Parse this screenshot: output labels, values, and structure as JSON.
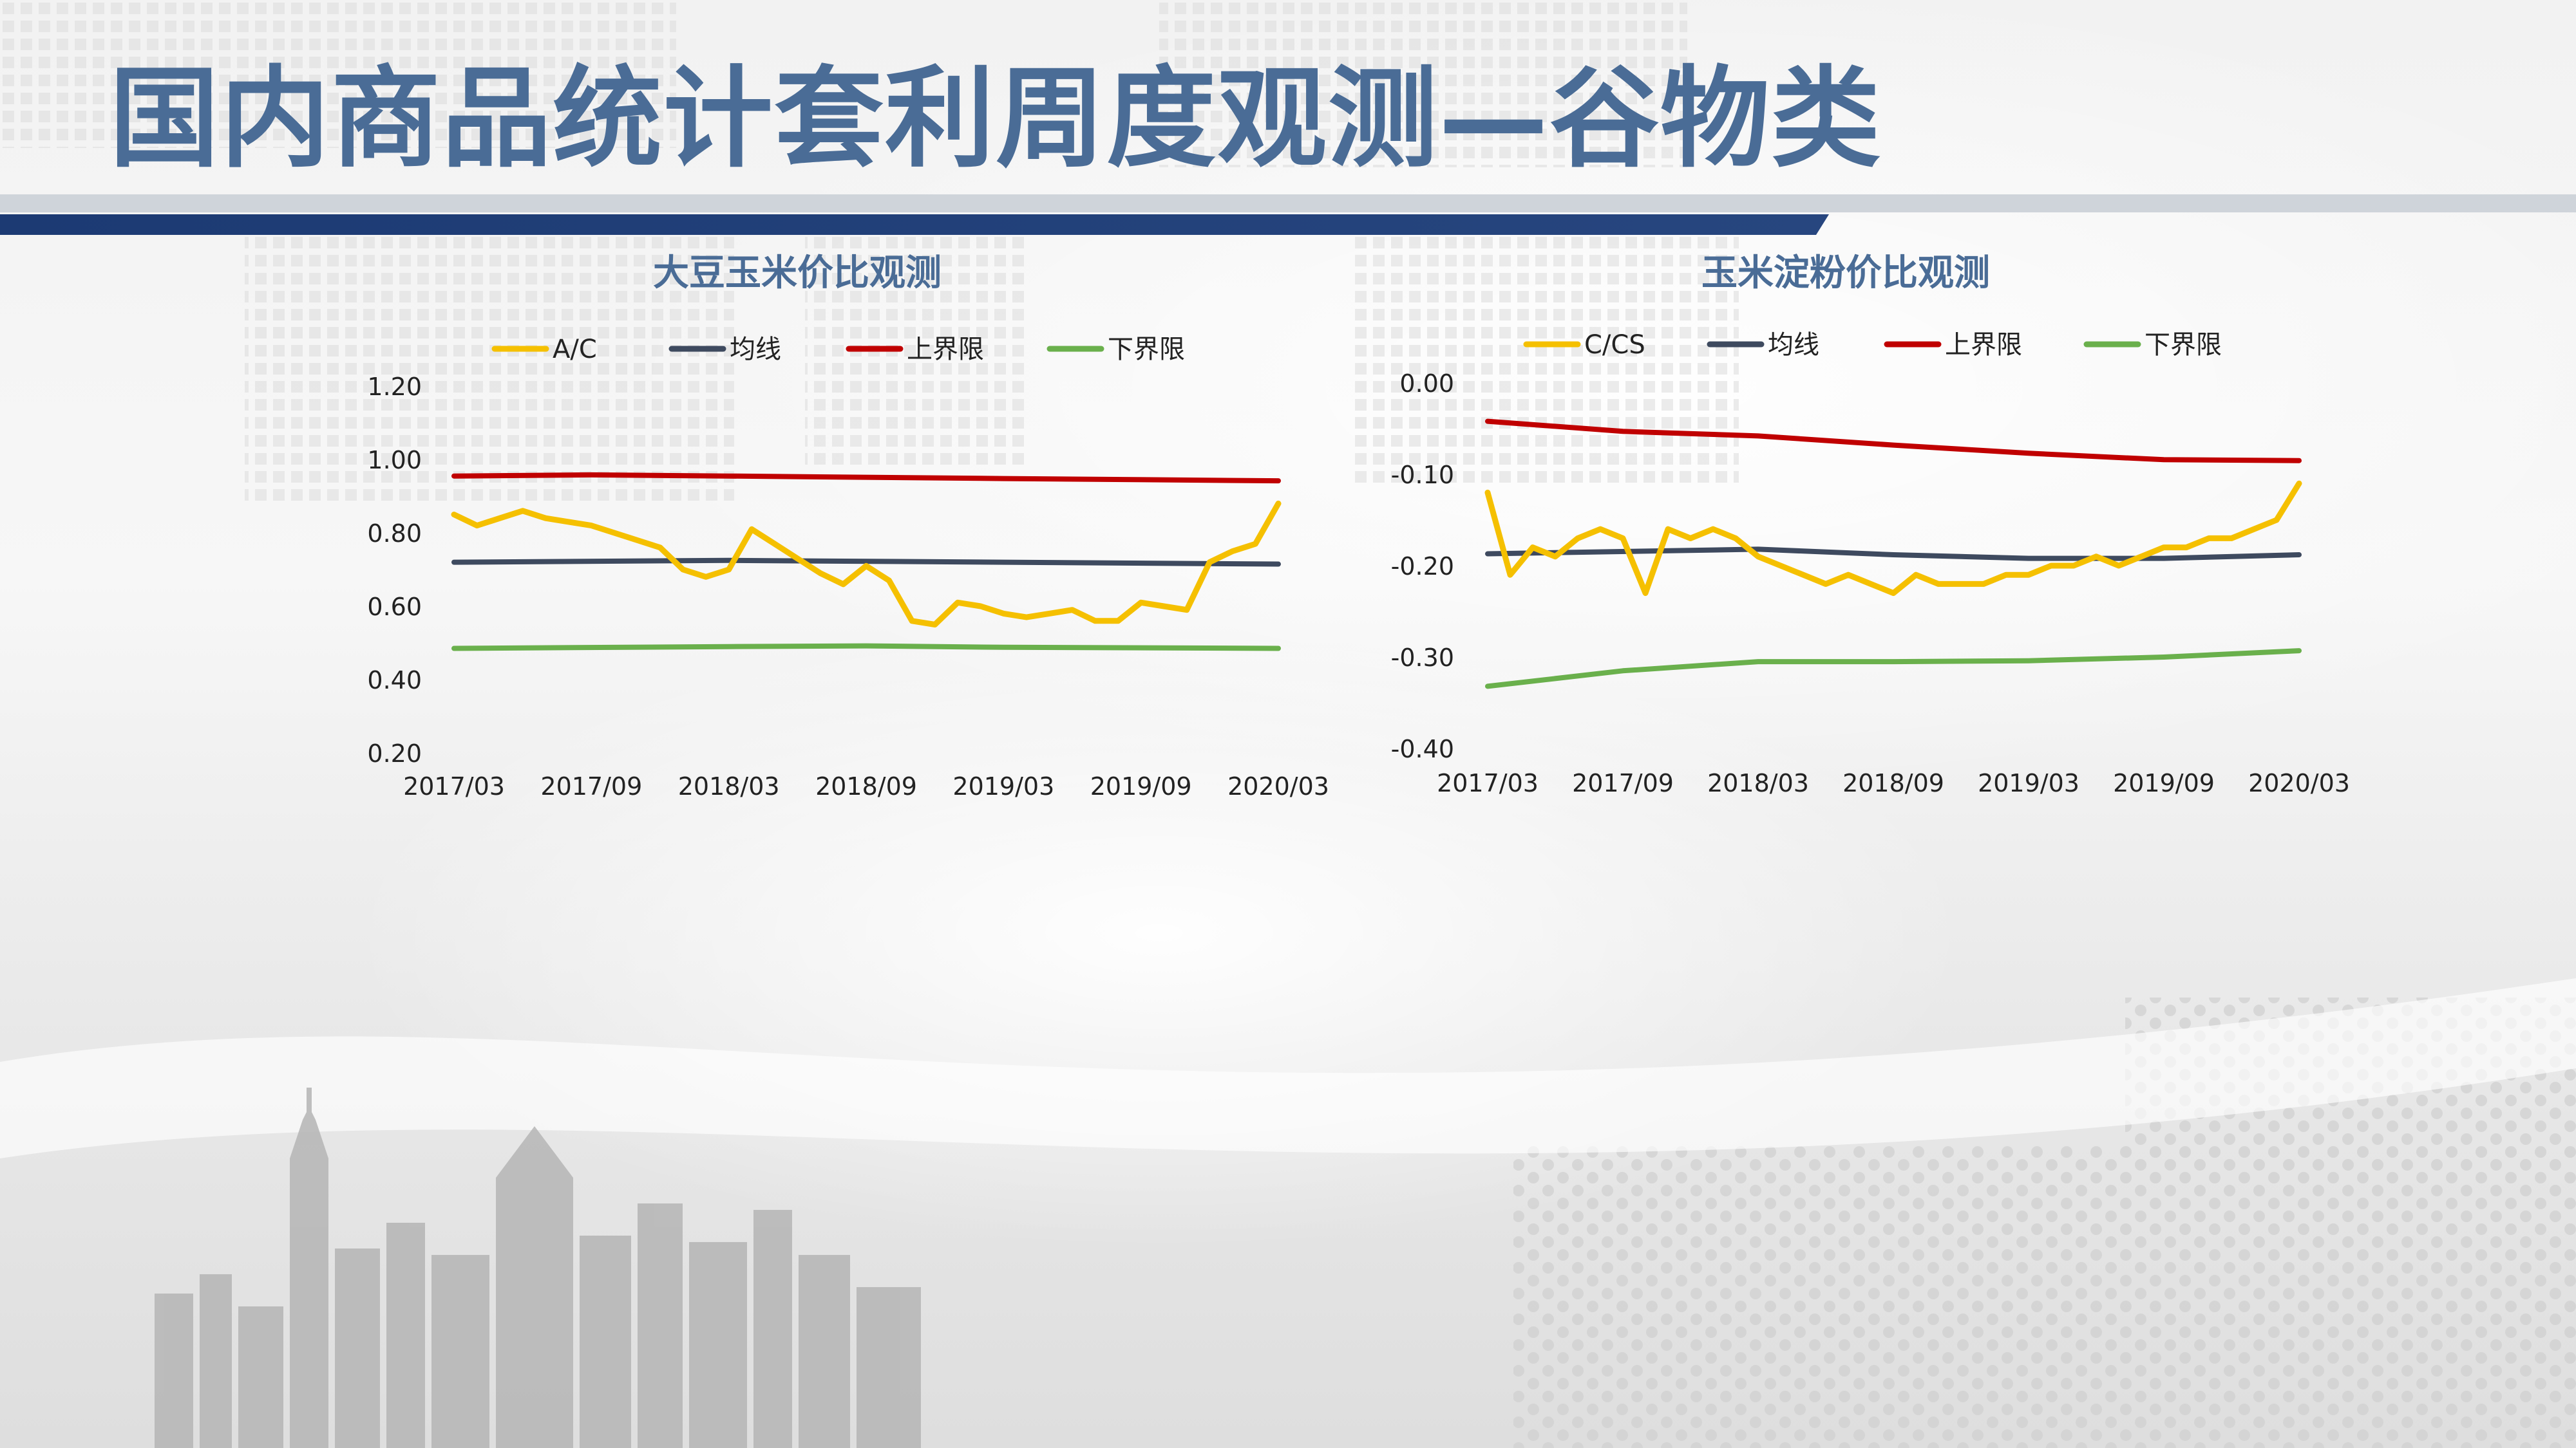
{
  "slide": {
    "title": "国内商品统计套利周度观测—谷物类"
  },
  "colors": {
    "title": "#4a6c96",
    "banner": "#1c3a73",
    "ratio": "#f5c000",
    "mean": "#3e4a5f",
    "upper": "#c00000",
    "lower": "#6ab04c"
  },
  "chart_data": [
    {
      "type": "line",
      "title": "大豆玉米价比观测",
      "xlabel": "",
      "ylabel": "",
      "x_ticks": [
        "2017/03",
        "2017/09",
        "2018/03",
        "2018/09",
        "2019/03",
        "2019/09",
        "2020/03"
      ],
      "y_ticks": [
        "1.20",
        "1.00",
        "0.80",
        "0.60",
        "0.40",
        "0.20"
      ],
      "ylim": [
        0.2,
        1.2
      ],
      "legend_position": "top",
      "grid": false,
      "x_start": "2017/03",
      "x_end": "2020/03",
      "series": [
        {
          "name": "A/C",
          "color": "#f5c000",
          "points": [
            [
              "2017/03",
              0.85
            ],
            [
              "2017/04",
              0.82
            ],
            [
              "2017/05",
              0.84
            ],
            [
              "2017/06",
              0.86
            ],
            [
              "2017/07",
              0.84
            ],
            [
              "2017/08",
              0.83
            ],
            [
              "2017/09",
              0.82
            ],
            [
              "2017/10",
              0.8
            ],
            [
              "2017/11",
              0.78
            ],
            [
              "2017/12",
              0.76
            ],
            [
              "2018/01",
              0.7
            ],
            [
              "2018/02",
              0.68
            ],
            [
              "2018/03",
              0.7
            ],
            [
              "2018/04",
              0.81
            ],
            [
              "2018/05",
              0.77
            ],
            [
              "2018/06",
              0.73
            ],
            [
              "2018/07",
              0.69
            ],
            [
              "2018/08",
              0.66
            ],
            [
              "2018/09",
              0.71
            ],
            [
              "2018/10",
              0.67
            ],
            [
              "2018/11",
              0.56
            ],
            [
              "2018/12",
              0.55
            ],
            [
              "2019/01",
              0.61
            ],
            [
              "2019/02",
              0.6
            ],
            [
              "2019/03",
              0.58
            ],
            [
              "2019/04",
              0.57
            ],
            [
              "2019/05",
              0.58
            ],
            [
              "2019/06",
              0.59
            ],
            [
              "2019/07",
              0.56
            ],
            [
              "2019/08",
              0.56
            ],
            [
              "2019/09",
              0.61
            ],
            [
              "2019/10",
              0.6
            ],
            [
              "2019/11",
              0.59
            ],
            [
              "2019/12",
              0.72
            ],
            [
              "2020/01",
              0.75
            ],
            [
              "2020/02",
              0.77
            ],
            [
              "2020/03",
              0.88
            ]
          ]
        },
        {
          "name": "均线",
          "color": "#3e4a5f",
          "points": [
            [
              "2017/03",
              0.72
            ],
            [
              "2018/03",
              0.725
            ],
            [
              "2019/03",
              0.72
            ],
            [
              "2020/03",
              0.715
            ]
          ]
        },
        {
          "name": "上界限",
          "color": "#c00000",
          "points": [
            [
              "2017/03",
              0.955
            ],
            [
              "2017/09",
              0.958
            ],
            [
              "2018/03",
              0.955
            ],
            [
              "2019/03",
              0.948
            ],
            [
              "2020/03",
              0.942
            ]
          ]
        },
        {
          "name": "下界限",
          "color": "#6ab04c",
          "points": [
            [
              "2017/03",
              0.485
            ],
            [
              "2018/03",
              0.49
            ],
            [
              "2018/09",
              0.492
            ],
            [
              "2019/03",
              0.488
            ],
            [
              "2020/03",
              0.485
            ]
          ]
        }
      ]
    },
    {
      "type": "line",
      "title": "玉米淀粉价比观测",
      "xlabel": "",
      "ylabel": "",
      "x_ticks": [
        "2017/03",
        "2017/09",
        "2018/03",
        "2018/09",
        "2019/03",
        "2019/09",
        "2020/03"
      ],
      "y_ticks": [
        "0.00",
        "-0.10",
        "-0.20",
        "-0.30",
        "-0.40"
      ],
      "ylim": [
        -0.4,
        0.0
      ],
      "legend_position": "top",
      "grid": false,
      "x_start": "2017/03",
      "x_end": "2020/03",
      "series": [
        {
          "name": "C/CS",
          "color": "#f5c000",
          "points": [
            [
              "2017/03",
              -0.12
            ],
            [
              "2017/04",
              -0.21
            ],
            [
              "2017/05",
              -0.18
            ],
            [
              "2017/06",
              -0.19
            ],
            [
              "2017/07",
              -0.17
            ],
            [
              "2017/08",
              -0.16
            ],
            [
              "2017/09",
              -0.17
            ],
            [
              "2017/10",
              -0.23
            ],
            [
              "2017/11",
              -0.16
            ],
            [
              "2017/12",
              -0.17
            ],
            [
              "2018/01",
              -0.16
            ],
            [
              "2018/02",
              -0.17
            ],
            [
              "2018/03",
              -0.19
            ],
            [
              "2018/04",
              -0.2
            ],
            [
              "2018/05",
              -0.21
            ],
            [
              "2018/06",
              -0.22
            ],
            [
              "2018/07",
              -0.21
            ],
            [
              "2018/08",
              -0.22
            ],
            [
              "2018/09",
              -0.23
            ],
            [
              "2018/10",
              -0.21
            ],
            [
              "2018/11",
              -0.22
            ],
            [
              "2018/12",
              -0.22
            ],
            [
              "2019/01",
              -0.22
            ],
            [
              "2019/02",
              -0.21
            ],
            [
              "2019/03",
              -0.21
            ],
            [
              "2019/04",
              -0.2
            ],
            [
              "2019/05",
              -0.2
            ],
            [
              "2019/06",
              -0.19
            ],
            [
              "2019/07",
              -0.2
            ],
            [
              "2019/08",
              -0.19
            ],
            [
              "2019/09",
              -0.18
            ],
            [
              "2019/10",
              -0.18
            ],
            [
              "2019/11",
              -0.17
            ],
            [
              "2019/12",
              -0.17
            ],
            [
              "2020/01",
              -0.16
            ],
            [
              "2020/02",
              -0.15
            ],
            [
              "2020/03",
              -0.11
            ]
          ]
        },
        {
          "name": "均线",
          "color": "#3e4a5f",
          "points": [
            [
              "2017/03",
              -0.187
            ],
            [
              "2018/03",
              -0.182
            ],
            [
              "2018/09",
              -0.188
            ],
            [
              "2019/03",
              -0.192
            ],
            [
              "2019/09",
              -0.192
            ],
            [
              "2020/03",
              -0.188
            ]
          ]
        },
        {
          "name": "上界限",
          "color": "#c00000",
          "points": [
            [
              "2017/03",
              -0.042
            ],
            [
              "2017/09",
              -0.053
            ],
            [
              "2018/03",
              -0.058
            ],
            [
              "2018/09",
              -0.068
            ],
            [
              "2019/03",
              -0.077
            ],
            [
              "2019/09",
              -0.084
            ],
            [
              "2020/03",
              -0.085
            ]
          ]
        },
        {
          "name": "下界限",
          "color": "#6ab04c",
          "points": [
            [
              "2017/03",
              -0.332
            ],
            [
              "2017/09",
              -0.315
            ],
            [
              "2018/03",
              -0.305
            ],
            [
              "2018/09",
              -0.305
            ],
            [
              "2019/03",
              -0.304
            ],
            [
              "2019/09",
              -0.3
            ],
            [
              "2020/03",
              -0.293
            ]
          ]
        }
      ]
    }
  ]
}
